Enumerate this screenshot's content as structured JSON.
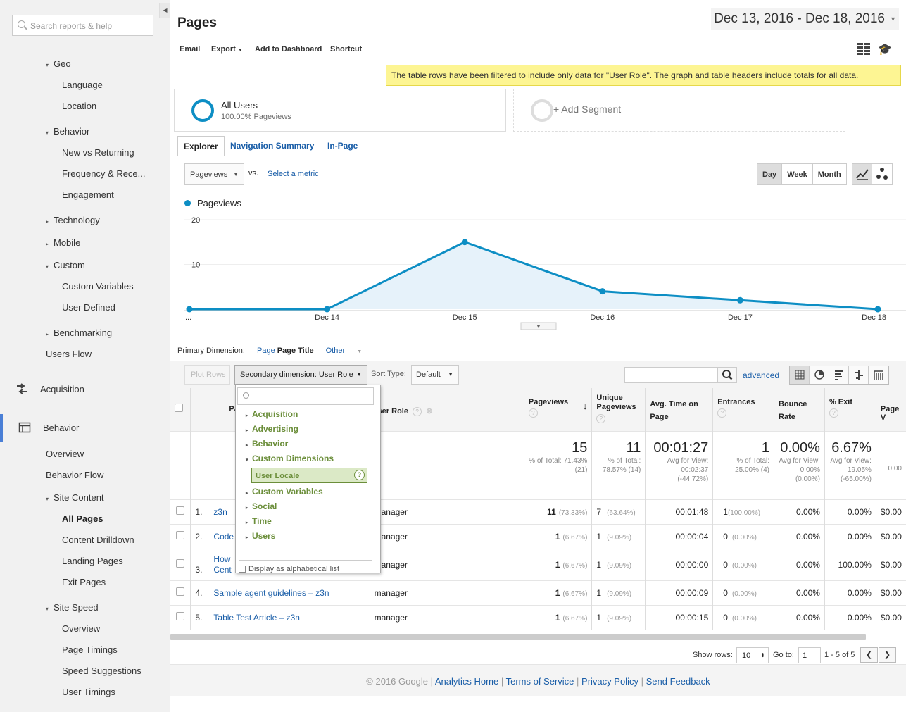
{
  "sidebar": {
    "search_placeholder": "Search reports & help",
    "items": [
      {
        "label": "Geo",
        "tri": "▾"
      },
      {
        "label": "Language"
      },
      {
        "label": "Location"
      },
      {
        "label": "Behavior",
        "tri": "▾"
      },
      {
        "label": "New vs Returning"
      },
      {
        "label": "Frequency & Rece..."
      },
      {
        "label": "Engagement"
      },
      {
        "label": "Technology",
        "tri": "▸"
      },
      {
        "label": "Mobile",
        "tri": "▸"
      },
      {
        "label": "Custom",
        "tri": "▾"
      },
      {
        "label": "Custom Variables"
      },
      {
        "label": "User Defined"
      },
      {
        "label": "Benchmarking",
        "tri": "▸"
      },
      {
        "label": "Users Flow"
      },
      {
        "label": "Overview"
      },
      {
        "label": "Behavior Flow"
      },
      {
        "label": "Site Content",
        "tri": "▾"
      },
      {
        "label": "All Pages"
      },
      {
        "label": "Content Drilldown"
      },
      {
        "label": "Landing Pages"
      },
      {
        "label": "Exit Pages"
      },
      {
        "label": "Site Speed",
        "tri": "▾"
      },
      {
        "label": "Overview"
      },
      {
        "label": "Page Timings"
      },
      {
        "label": "Speed Suggestions"
      },
      {
        "label": "User Timings"
      }
    ],
    "sections": {
      "acquisition": "Acquisition",
      "behavior": "Behavior"
    }
  },
  "header": {
    "title": "Pages",
    "date_range": "Dec 13, 2016 - Dec 18, 2016"
  },
  "toolbar": {
    "email": "Email",
    "export": "Export",
    "add_to_dashboard": "Add to Dashboard",
    "shortcut": "Shortcut"
  },
  "notice": "The table rows have been filtered to include only data for \"User Role\". The graph and table headers include totals for all data.",
  "segments": {
    "all_users": "All Users",
    "all_users_sub": "100.00% Pageviews",
    "add_segment": "+ Add Segment"
  },
  "tabs": [
    "Explorer",
    "Navigation Summary",
    "In-Page"
  ],
  "metric": {
    "selected": "Pageviews",
    "vs": "vs.",
    "select_metric": "Select a metric"
  },
  "period": [
    "Day",
    "Week",
    "Month"
  ],
  "colors": {
    "accent": "#0d8ec4",
    "link": "#1a5ea8",
    "notice": "#fdf593",
    "dim_green": "#6b8e3a"
  },
  "chart_data": {
    "type": "area",
    "series": [
      {
        "name": "Pageviews",
        "values": [
          0,
          0,
          15,
          4,
          2,
          0
        ]
      }
    ],
    "x_labels": [
      "...",
      "Dec 14",
      "Dec 15",
      "Dec 16",
      "Dec 17",
      "Dec 18"
    ],
    "y_ticks": [
      10,
      20
    ],
    "ylim": [
      0,
      20
    ]
  },
  "dimension": {
    "primary_label": "Primary Dimension:",
    "page": "Page",
    "page_title": "Page Title",
    "other": "Other"
  },
  "controls": {
    "plot_rows": "Plot Rows",
    "secondary_dimension": "Secondary dimension: User Role",
    "sort_type_label": "Sort Type:",
    "sort_type": "Default",
    "advanced": "advanced"
  },
  "dropdown": {
    "groups_top": [
      "Acquisition",
      "Advertising",
      "Behavior"
    ],
    "expanded_group": "Custom Dimensions",
    "selected_item": "User Locale",
    "help": "?",
    "groups_bottom": [
      "Custom Variables",
      "Social",
      "Time",
      "Users"
    ],
    "alphabetical": "Display as alphabetical list"
  },
  "table": {
    "headers": {
      "page_title": "Page T",
      "user_role": "User Role",
      "pageviews": "Pageviews",
      "unique_pageviews": "Unique Pageviews",
      "avg_time": "Avg. Time on Page",
      "entrances": "Entrances",
      "bounce_rate": "Bounce Rate",
      "exit": "% Exit",
      "page_value": "Page V"
    },
    "totals": {
      "pageviews": "15",
      "pageviews_sub": "% of Total: 71.43% (21)",
      "unique": "11",
      "unique_sub": "% of Total: 78.57% (14)",
      "avg_time": "00:01:27",
      "avg_time_sub": "Avg for View: 00:02:37 (-44.72%)",
      "entrances": "1",
      "entrances_sub": "% of Total: 25.00% (4)",
      "bounce": "0.00%",
      "bounce_sub": "Avg for View: 0.00% (0.00%)",
      "exit": "6.67%",
      "exit_sub": "Avg for View: 19.05% (-65.00%)",
      "value_sub": "0.00"
    },
    "rows": [
      {
        "n": "1.",
        "title": "z3n",
        "role": "manager",
        "pv": "11",
        "pv_pct": "(73.33%)",
        "upv": "7",
        "upv_pct": "(63.64%)",
        "time": "00:01:48",
        "ent": "1",
        "ent_pct": "(100.00%)",
        "bounce": "0.00%",
        "exit": "0.00%",
        "value": "$0.00"
      },
      {
        "n": "2.",
        "title": "Code",
        "role": "manager",
        "pv": "1",
        "pv_pct": "(6.67%)",
        "upv": "1",
        "upv_pct": "(9.09%)",
        "time": "00:00:04",
        "ent": "0",
        "ent_pct": "(0.00%)",
        "bounce": "0.00%",
        "exit": "0.00%",
        "value": "$0.00"
      },
      {
        "n": "3.",
        "title": "How",
        "title2": "Cent",
        "role": "manager",
        "pv": "1",
        "pv_pct": "(6.67%)",
        "upv": "1",
        "upv_pct": "(9.09%)",
        "time": "00:00:00",
        "ent": "0",
        "ent_pct": "(0.00%)",
        "bounce": "0.00%",
        "exit": "100.00%",
        "value": "$0.00"
      },
      {
        "n": "4.",
        "title": "Sample agent guidelines – z3n",
        "role": "manager",
        "pv": "1",
        "pv_pct": "(6.67%)",
        "upv": "1",
        "upv_pct": "(9.09%)",
        "time": "00:00:09",
        "ent": "0",
        "ent_pct": "(0.00%)",
        "bounce": "0.00%",
        "exit": "0.00%",
        "value": "$0.00"
      },
      {
        "n": "5.",
        "title": "Table Test Article – z3n",
        "role": "manager",
        "pv": "1",
        "pv_pct": "(6.67%)",
        "upv": "1",
        "upv_pct": "(9.09%)",
        "time": "00:00:15",
        "ent": "0",
        "ent_pct": "(0.00%)",
        "bounce": "0.00%",
        "exit": "0.00%",
        "value": "$0.00"
      }
    ]
  },
  "pagination": {
    "show_rows": "Show rows:",
    "rows_value": "10",
    "goto": "Go to:",
    "goto_value": "1",
    "range": "1 - 5 of 5",
    "prev": "❮",
    "next": "❯"
  },
  "footer": {
    "copyright": "© 2016 Google",
    "sep": "|",
    "analytics_home": "Analytics Home",
    "terms": "Terms of Service",
    "privacy": "Privacy Policy",
    "feedback": "Send Feedback"
  }
}
